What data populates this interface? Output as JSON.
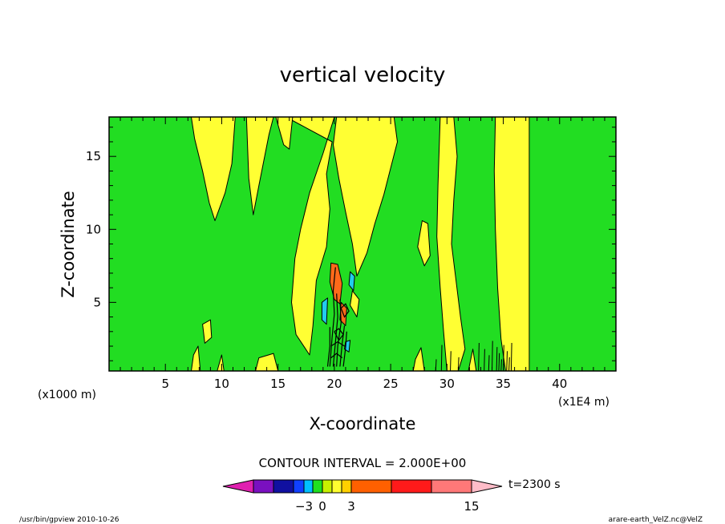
{
  "chart_data": {
    "type": "heatmap",
    "title": "vertical velocity",
    "xlabel": "X-coordinate",
    "ylabel": "Z-coordinate",
    "x_unit_left": "(x1000 m)",
    "x_unit_right": "(x1E4 m)",
    "xlim": [
      0,
      45
    ],
    "ylim": [
      0.3,
      17.7
    ],
    "x_ticks": [
      5,
      10,
      15,
      20,
      25,
      30,
      35,
      40
    ],
    "y_ticks": [
      5,
      10,
      15
    ],
    "contour_interval_text": "CONTOUR INTERVAL = 2.000E+00",
    "time_text": "t=2300 s",
    "colorbar": {
      "tick_labels": [
        {
          "value": -3,
          "label": "−3"
        },
        {
          "value": 0,
          "label": "0"
        },
        {
          "value": 3,
          "label": "3"
        },
        {
          "value": 15,
          "label": "15"
        }
      ],
      "colors": [
        "#e020b0",
        "#7a10c0",
        "#1010a0",
        "#1040ff",
        "#00c0ff",
        "#20e020",
        "#c8f000",
        "#ffff30",
        "#ffd000",
        "#ff6000",
        "#ff1a1a",
        "#ff7878",
        "#ffbcc8"
      ]
    },
    "background_color": "#22dd22",
    "updraft_color": "#ffff33",
    "core_colors": {
      "orange": "#ff6a1a",
      "downdraft": "#22ccee"
    }
  },
  "footer": {
    "left": "/usr/bin/gpview  2010-10-26",
    "right": "arare-earth_VelZ.nc@VelZ"
  }
}
